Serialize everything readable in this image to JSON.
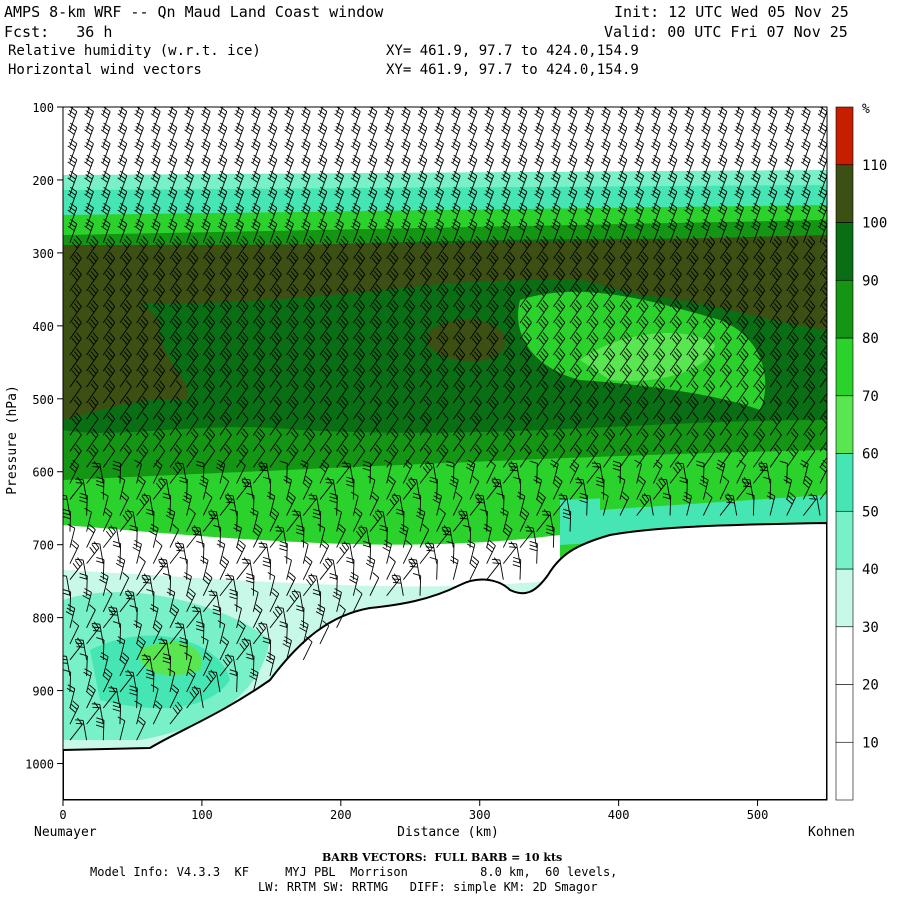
{
  "header": {
    "title_left": "AMPS 8-km WRF -- Qn Maud Land Coast window",
    "init_label": "Init: 12 UTC Wed 05 Nov 25",
    "fcst_label": "Fcst:   36 h",
    "valid_label": "Valid: 00 UTC Fri 07 Nov 25",
    "field1_name": "Relative humidity (w.r.t. ice)",
    "field1_xy": "XY= 461.9, 97.7 to 424.0,154.9",
    "field2_name": "Horizontal wind vectors",
    "field2_xy": "XY= 461.9, 97.7 to 424.0,154.9"
  },
  "footer": {
    "barb_note": "BARB VECTORS:  FULL BARB = 10 kts",
    "model_info": "Model Info: V4.3.3  KF     MYJ PBL  Morrison          8.0 km,  60 levels,",
    "physics_info": "LW: RRTM SW: RRTMG   DIFF: simple KM: 2D Smagor"
  },
  "chart_data": {
    "type": "contour-cross-section",
    "title": "Relative humidity (w.r.t. ice)",
    "xlabel": "Distance (km)",
    "ylabel": "Pressure (hPa)",
    "x_range": [
      0,
      550
    ],
    "y_range": [
      1050,
      100
    ],
    "x_ticks": [
      0,
      100,
      200,
      300,
      400,
      500
    ],
    "y_ticks": [
      100,
      200,
      300,
      400,
      500,
      600,
      700,
      800,
      900,
      1000
    ],
    "x_left_label": "Neumayer",
    "x_right_label": "Kohnen",
    "colorbar": {
      "unit": "%",
      "levels": [
        10,
        20,
        30,
        40,
        50,
        60,
        70,
        80,
        90,
        100,
        110
      ],
      "colors": [
        "#ffffff",
        "#ffffff",
        "#ffffff",
        "#c8f8e8",
        "#78f0c8",
        "#46e6b4",
        "#5ae650",
        "#2cd22c",
        "#149614",
        "#0a6e14",
        "#3c5014",
        "#c81e00"
      ]
    },
    "terrain_surface": {
      "x_km": [
        0,
        60,
        100,
        140,
        180,
        220,
        260,
        280,
        300,
        320,
        330,
        350,
        370,
        400,
        430,
        460,
        500,
        550
      ],
      "pressure_hpa": [
        982,
        980,
        940,
        910,
        860,
        800,
        785,
        765,
        760,
        770,
        765,
        720,
        690,
        680,
        678,
        676,
        674,
        673
      ]
    },
    "rh_bands": [
      {
        "level": 110,
        "region": "upper layer 280-330 hPa",
        "x_km": [
          0,
          550
        ]
      },
      {
        "level": 100,
        "region": "mid layer 300-550 hPa",
        "x_km": [
          0,
          550
        ]
      },
      {
        "level": 80,
        "region": "pocket near 420 hPa",
        "x_km": [
          350,
          480
        ]
      },
      {
        "level": 40,
        "region": "low-level wedge",
        "x_km": [
          0,
          200
        ]
      }
    ],
    "barb_note": "FULL BARB = 10 kts"
  }
}
